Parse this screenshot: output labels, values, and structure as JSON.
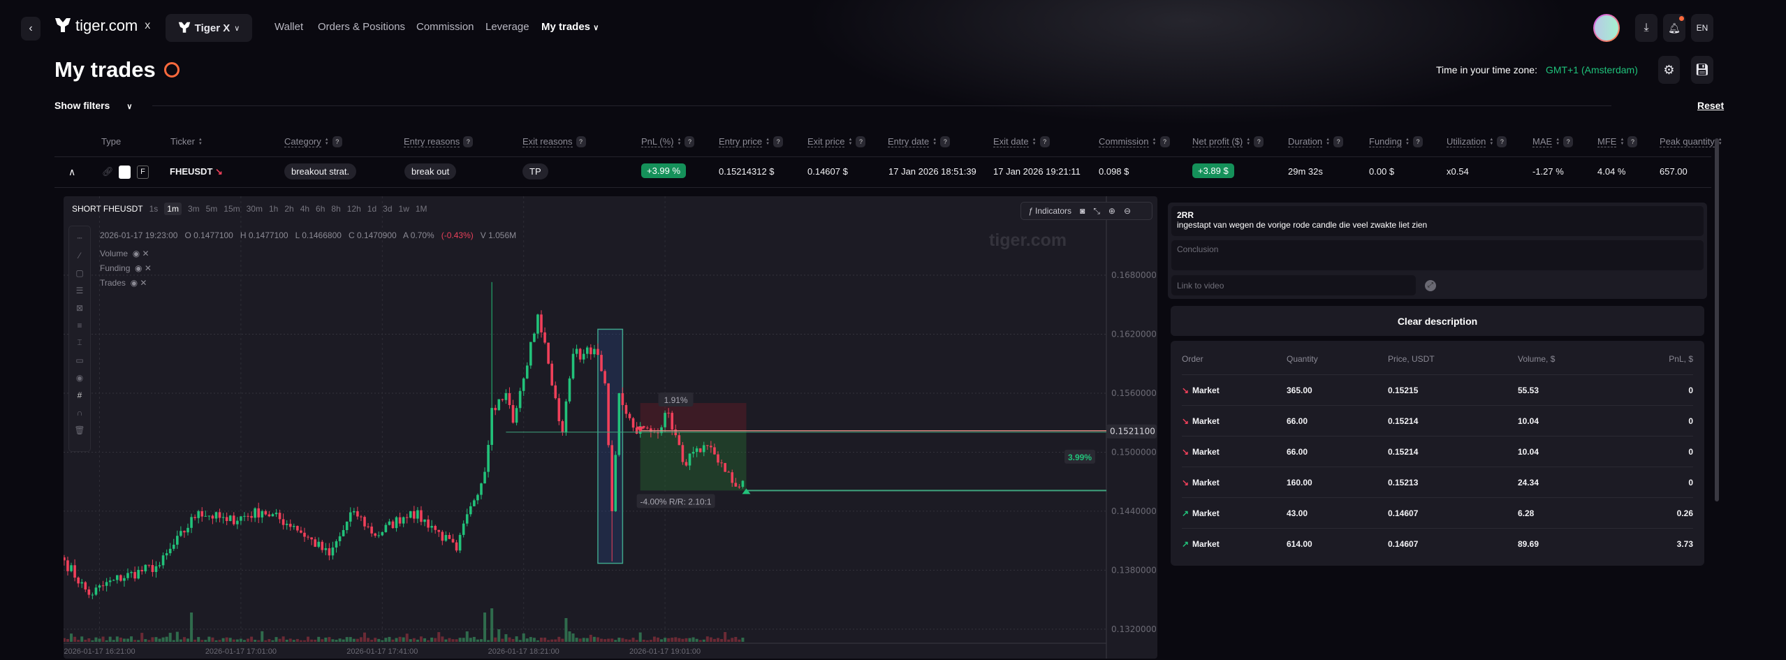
{
  "nav": {
    "brand": "tiger.com",
    "x": "x",
    "workspace": "Tiger X",
    "links": [
      "Wallet",
      "Orders & Positions",
      "Commission",
      "Leverage"
    ],
    "active": "My trades",
    "lang": "EN"
  },
  "page": {
    "title": "My trades",
    "tz_label": "Time in your time zone:",
    "tz_value": "GMT+1 (Amsterdam)",
    "show_filters": "Show filters",
    "reset": "Reset"
  },
  "table": {
    "headers": [
      "Type",
      "Ticker",
      "Category",
      "Entry reasons",
      "Exit reasons",
      "PnL (%)",
      "Entry price",
      "Exit price",
      "Entry date",
      "Exit date",
      "Commission",
      "Net profit ($)",
      "Duration",
      "Funding",
      "Utilization",
      "MAE",
      "MFE",
      "Peak quantity"
    ],
    "row": {
      "type_badge": "F",
      "ticker": "FHEUSDT",
      "category": "breakout strat.",
      "entry_reasons": "break out",
      "exit_reasons": "TP",
      "pnl": "+3.99 %",
      "entry_price": "0.15214312 $",
      "exit_price": "0.14607 $",
      "entry_date": "17 Jan 2026 18:51:39",
      "exit_date": "17 Jan 2026 19:21:11",
      "commission": "0.098 $",
      "net_profit": "+3.89 $",
      "duration": "29m 32s",
      "funding": "0.00 $",
      "utilization": "x0.54",
      "mae": "-1.27 %",
      "mfe": "4.04 %",
      "peak_quantity": "657.00"
    }
  },
  "chart": {
    "symbol": "SHORT FHEUSDT",
    "timeframes": [
      "1s",
      "1m",
      "3m",
      "5m",
      "15m",
      "30m",
      "1h",
      "2h",
      "4h",
      "6h",
      "8h",
      "12h",
      "1d",
      "3d",
      "1w",
      "1M"
    ],
    "selected_timeframe": "1m",
    "indicators": "Indicators",
    "watermark": "tiger.com",
    "ohlc": {
      "time": "2026-01-17 19:23:00",
      "o": "O 0.1477100",
      "h": "H 0.1477100",
      "l": "L 0.1466800",
      "c": "C 0.1470900",
      "a": "A 0.70%",
      "chg": "(-0.43%)",
      "v": "V 1.056M"
    },
    "overlays": [
      "Volume",
      "Funding",
      "Trades"
    ],
    "current_price": "0.1521100",
    "labels": {
      "stop": "1.91%",
      "target": "-4.00% R/R: 2.10:1",
      "result": "3.99%"
    }
  },
  "chart_data": {
    "type": "candlestick",
    "interval": "1m",
    "y_ticks": [
      "0.1680000",
      "0.1620000",
      "0.1560000",
      "0.1500000",
      "0.1440000",
      "0.1380000",
      "0.1320000"
    ],
    "ylim": [
      0.132,
      0.168
    ],
    "x_ticks": [
      "2026-01-17 16:21:00",
      "2026-01-17 17:01:00",
      "2026-01-17 17:41:00",
      "2026-01-17 18:21:00",
      "2026-01-17 19:01:00"
    ],
    "grid": true,
    "price_path": [
      [
        "16:11",
        0.139
      ],
      [
        "16:18",
        0.1355
      ],
      [
        "16:25",
        0.137
      ],
      [
        "16:38",
        0.1385
      ],
      [
        "16:49",
        0.144
      ],
      [
        "16:57",
        0.143
      ],
      [
        "17:07",
        0.144
      ],
      [
        "17:16",
        0.1425
      ],
      [
        "17:26",
        0.1395
      ],
      [
        "17:33",
        0.144
      ],
      [
        "17:39",
        0.1415
      ],
      [
        "17:49",
        0.144
      ],
      [
        "17:55",
        0.1425
      ],
      [
        "18:02",
        0.14
      ],
      [
        "18:06",
        0.1445
      ],
      [
        "18:10",
        0.148
      ],
      [
        "18:12",
        0.1545
      ],
      [
        "18:16",
        0.156
      ],
      [
        "18:18",
        0.153
      ],
      [
        "18:21",
        0.1575
      ],
      [
        "18:25",
        0.164
      ],
      [
        "18:28",
        0.159
      ],
      [
        "18:32",
        0.152
      ],
      [
        "18:35",
        0.16
      ],
      [
        "18:38",
        0.16
      ],
      [
        "18:41",
        0.1605
      ],
      [
        "18:44",
        0.157
      ],
      [
        "18:46",
        0.144
      ],
      [
        "18:48",
        0.156
      ],
      [
        "18:52",
        0.1525
      ],
      [
        "18:58",
        0.152
      ],
      [
        "19:02",
        0.154
      ],
      [
        "19:06",
        0.149
      ],
      [
        "19:11",
        0.15
      ],
      [
        "19:14",
        0.1505
      ],
      [
        "19:18",
        0.148
      ],
      [
        "19:21",
        0.1465
      ],
      [
        "19:23",
        0.14709
      ]
    ],
    "entry_price": 0.15211,
    "exit_price": 0.1461,
    "highlight_box": {
      "from": "18:42",
      "to": "18:49",
      "low": 0.1387,
      "high": 0.1625
    },
    "position_box": {
      "from": "18:54",
      "to": "19:24",
      "stop": 0.155,
      "target": 0.1461
    },
    "colors": {
      "up": "#22c27a",
      "down": "#f0405a",
      "entry_line": "#d98a80",
      "exit_line": "#3fa57e"
    }
  },
  "notes": {
    "text_title": "2RR",
    "text_body": "ingestapt van wegen de vorige rode candle die veel zwakte liet zien",
    "conclusion_placeholder": "Conclusion",
    "video_placeholder": "Link to video",
    "clear": "Clear description"
  },
  "orders": {
    "headers": [
      "Order",
      "Quantity",
      "Price, USDT",
      "Volume, $",
      "PnL, $"
    ],
    "rows": [
      {
        "side": "sell",
        "order": "Market",
        "qty": "365.00",
        "price": "0.15215",
        "volume": "55.53",
        "pnl": "0"
      },
      {
        "side": "sell",
        "order": "Market",
        "qty": "66.00",
        "price": "0.15214",
        "volume": "10.04",
        "pnl": "0"
      },
      {
        "side": "sell",
        "order": "Market",
        "qty": "66.00",
        "price": "0.15214",
        "volume": "10.04",
        "pnl": "0"
      },
      {
        "side": "sell",
        "order": "Market",
        "qty": "160.00",
        "price": "0.15213",
        "volume": "24.34",
        "pnl": "0"
      },
      {
        "side": "buy",
        "order": "Market",
        "qty": "43.00",
        "price": "0.14607",
        "volume": "6.28",
        "pnl": "0.26"
      },
      {
        "side": "buy",
        "order": "Market",
        "qty": "614.00",
        "price": "0.14607",
        "volume": "89.69",
        "pnl": "3.73"
      }
    ]
  }
}
